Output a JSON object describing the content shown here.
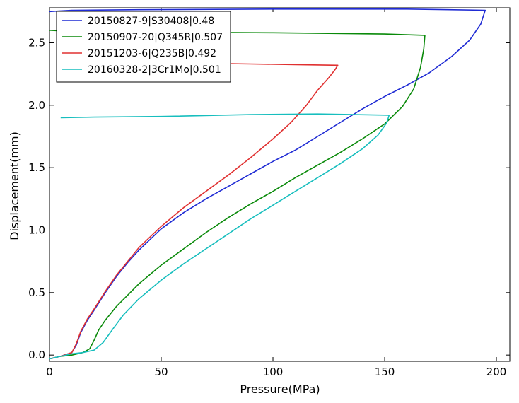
{
  "chart_data": {
    "type": "line",
    "xlabel": "Pressure(MPa)",
    "ylabel": "Displacement(mm)",
    "xlim": [
      0,
      206
    ],
    "ylim": [
      -0.05,
      2.78
    ],
    "xticks": [
      0,
      50,
      100,
      150,
      200
    ],
    "yticks": [
      0.0,
      0.5,
      1.0,
      1.5,
      2.0,
      2.5
    ],
    "xtick_labels": [
      "0",
      "50",
      "100",
      "150",
      "200"
    ],
    "ytick_labels": [
      "0.0",
      "0.5",
      "1.0",
      "1.5",
      "2.0",
      "2.5"
    ],
    "grid": false,
    "legend_position": "top-left",
    "series": [
      {
        "name": "20150827-9|S30408|0.48",
        "color": "#1f2bd4",
        "points": [
          [
            0,
            -0.03
          ],
          [
            5,
            -0.01
          ],
          [
            10,
            0.02
          ],
          [
            12,
            0.08
          ],
          [
            14,
            0.18
          ],
          [
            17,
            0.28
          ],
          [
            20,
            0.36
          ],
          [
            25,
            0.5
          ],
          [
            30,
            0.63
          ],
          [
            35,
            0.74
          ],
          [
            40,
            0.84
          ],
          [
            50,
            1.01
          ],
          [
            60,
            1.14
          ],
          [
            70,
            1.25
          ],
          [
            80,
            1.35
          ],
          [
            90,
            1.45
          ],
          [
            100,
            1.55
          ],
          [
            110,
            1.64
          ],
          [
            120,
            1.75
          ],
          [
            130,
            1.86
          ],
          [
            140,
            1.97
          ],
          [
            150,
            2.07
          ],
          [
            160,
            2.16
          ],
          [
            170,
            2.26
          ],
          [
            180,
            2.39
          ],
          [
            188,
            2.52
          ],
          [
            193,
            2.65
          ],
          [
            195,
            2.76
          ],
          [
            160,
            2.77
          ],
          [
            100,
            2.77
          ],
          [
            40,
            2.765
          ],
          [
            10,
            2.76
          ],
          [
            0,
            2.75
          ]
        ]
      },
      {
        "name": "20150907-20|Q345R|0.507",
        "color": "#0a8a0a",
        "points": [
          [
            0,
            -0.03
          ],
          [
            5,
            -0.01
          ],
          [
            10,
            0.0
          ],
          [
            15,
            0.02
          ],
          [
            18,
            0.05
          ],
          [
            20,
            0.12
          ],
          [
            22,
            0.2
          ],
          [
            25,
            0.28
          ],
          [
            30,
            0.39
          ],
          [
            35,
            0.48
          ],
          [
            40,
            0.57
          ],
          [
            50,
            0.72
          ],
          [
            60,
            0.85
          ],
          [
            70,
            0.98
          ],
          [
            80,
            1.1
          ],
          [
            90,
            1.21
          ],
          [
            100,
            1.31
          ],
          [
            110,
            1.42
          ],
          [
            120,
            1.52
          ],
          [
            130,
            1.62
          ],
          [
            140,
            1.73
          ],
          [
            150,
            1.85
          ],
          [
            158,
            1.99
          ],
          [
            163,
            2.13
          ],
          [
            166,
            2.3
          ],
          [
            167.5,
            2.45
          ],
          [
            168,
            2.56
          ],
          [
            150,
            2.57
          ],
          [
            100,
            2.58
          ],
          [
            50,
            2.585
          ],
          [
            10,
            2.59
          ],
          [
            0,
            2.6
          ]
        ]
      },
      {
        "name": "20151203-6|Q235B|0.492",
        "color": "#e03030",
        "points": [
          [
            0,
            -0.03
          ],
          [
            5,
            -0.01
          ],
          [
            10,
            0.02
          ],
          [
            12,
            0.09
          ],
          [
            14,
            0.19
          ],
          [
            17,
            0.29
          ],
          [
            20,
            0.37
          ],
          [
            25,
            0.51
          ],
          [
            30,
            0.64
          ],
          [
            35,
            0.75
          ],
          [
            40,
            0.86
          ],
          [
            50,
            1.03
          ],
          [
            60,
            1.18
          ],
          [
            70,
            1.31
          ],
          [
            80,
            1.44
          ],
          [
            90,
            1.58
          ],
          [
            100,
            1.73
          ],
          [
            108,
            1.86
          ],
          [
            115,
            2.0
          ],
          [
            120,
            2.12
          ],
          [
            125,
            2.22
          ],
          [
            128,
            2.29
          ],
          [
            129,
            2.32
          ],
          [
            110,
            2.325
          ],
          [
            90,
            2.33
          ],
          [
            70,
            2.335
          ],
          [
            65,
            2.34
          ]
        ]
      },
      {
        "name": "20160328-2|3Cr1Mo|0.501",
        "color": "#17bebe",
        "points": [
          [
            0,
            -0.03
          ],
          [
            5,
            -0.01
          ],
          [
            10,
            0.01
          ],
          [
            15,
            0.02
          ],
          [
            20,
            0.04
          ],
          [
            24,
            0.1
          ],
          [
            28,
            0.2
          ],
          [
            33,
            0.32
          ],
          [
            40,
            0.45
          ],
          [
            50,
            0.6
          ],
          [
            60,
            0.73
          ],
          [
            70,
            0.85
          ],
          [
            80,
            0.97
          ],
          [
            90,
            1.09
          ],
          [
            100,
            1.2
          ],
          [
            110,
            1.31
          ],
          [
            120,
            1.42
          ],
          [
            130,
            1.53
          ],
          [
            140,
            1.65
          ],
          [
            147,
            1.76
          ],
          [
            151,
            1.86
          ],
          [
            152,
            1.92
          ],
          [
            120,
            1.93
          ],
          [
            90,
            1.925
          ],
          [
            50,
            1.91
          ],
          [
            20,
            1.905
          ],
          [
            5,
            1.9
          ]
        ]
      }
    ]
  }
}
